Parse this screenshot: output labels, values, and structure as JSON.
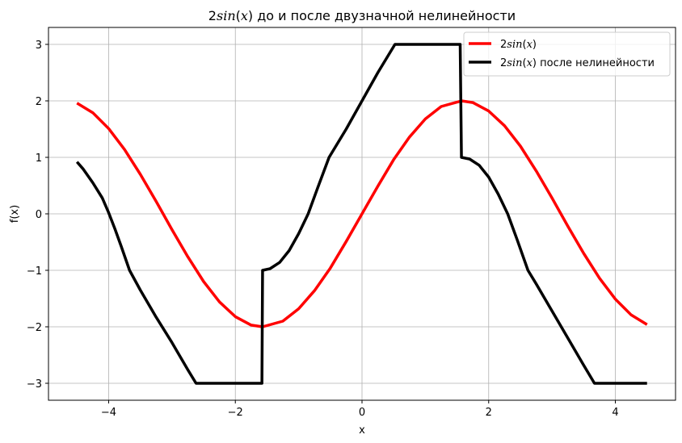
{
  "chart_data": {
    "type": "line",
    "title": {
      "prefix": "2",
      "func": "sin",
      "open": "(",
      "var": "x",
      "close": ")",
      "suffix": " до и после двузначной нелинейности"
    },
    "xlabel": "x",
    "ylabel": "f(x)",
    "xlim": [
      -4.95,
      4.95
    ],
    "ylim": [
      -3.3,
      3.3
    ],
    "xticks": [
      -4,
      -2,
      0,
      2,
      4
    ],
    "yticks": [
      -3,
      -2,
      -1,
      0,
      1,
      2,
      3
    ],
    "xtick_labels": [
      "−4",
      "−2",
      "0",
      "2",
      "4"
    ],
    "ytick_labels": [
      "−3",
      "−2",
      "−1",
      "0",
      "1",
      "2",
      "3"
    ],
    "grid": true,
    "legend_position": "top-right",
    "series": [
      {
        "name": {
          "prefix": "2",
          "func": "sin",
          "open": "(",
          "var": "x",
          "close": ")",
          "suffix": ""
        },
        "color": "#ff0000",
        "points": [
          [
            -4.5,
            1.96
          ],
          [
            -4.25,
            1.79
          ],
          [
            -4.0,
            1.51
          ],
          [
            -3.75,
            1.14
          ],
          [
            -3.5,
            0.7
          ],
          [
            -3.25,
            0.22
          ],
          [
            -3.0,
            -0.28
          ],
          [
            -2.75,
            -0.76
          ],
          [
            -2.5,
            -1.2
          ],
          [
            -2.25,
            -1.56
          ],
          [
            -2.0,
            -1.82
          ],
          [
            -1.75,
            -1.97
          ],
          [
            -1.5708,
            -2.0
          ],
          [
            -1.25,
            -1.9
          ],
          [
            -1.0,
            -1.68
          ],
          [
            -0.75,
            -1.36
          ],
          [
            -0.5,
            -0.96
          ],
          [
            -0.25,
            -0.49
          ],
          [
            0.0,
            0.0
          ],
          [
            0.25,
            0.49
          ],
          [
            0.5,
            0.96
          ],
          [
            0.75,
            1.36
          ],
          [
            1.0,
            1.68
          ],
          [
            1.25,
            1.9
          ],
          [
            1.5708,
            2.0
          ],
          [
            1.75,
            1.97
          ],
          [
            2.0,
            1.82
          ],
          [
            2.25,
            1.56
          ],
          [
            2.5,
            1.2
          ],
          [
            2.75,
            0.76
          ],
          [
            3.0,
            0.28
          ],
          [
            3.25,
            -0.22
          ],
          [
            3.5,
            -0.7
          ],
          [
            3.75,
            -1.14
          ],
          [
            4.0,
            -1.51
          ],
          [
            4.25,
            -1.79
          ],
          [
            4.5,
            -1.96
          ]
        ]
      },
      {
        "name": {
          "prefix": "2",
          "func": "sin",
          "open": "(",
          "var": "x",
          "close": ")",
          "suffix": " после нелинейности"
        },
        "color": "#000000",
        "points": [
          [
            -4.5,
            0.92
          ],
          [
            -4.4,
            0.79
          ],
          [
            -4.25,
            0.55
          ],
          [
            -4.1,
            0.28
          ],
          [
            -4.0,
            0.02
          ],
          [
            -3.9,
            -0.27
          ],
          [
            -3.8,
            -0.58
          ],
          [
            -3.67,
            -1.0
          ],
          [
            -3.5,
            -1.35
          ],
          [
            -3.25,
            -1.83
          ],
          [
            -3.0,
            -2.28
          ],
          [
            -2.75,
            -2.76
          ],
          [
            -2.62,
            -3.0
          ],
          [
            -1.58,
            -3.0
          ],
          [
            -1.57,
            -1.0
          ],
          [
            -1.45,
            -0.97
          ],
          [
            -1.3,
            -0.86
          ],
          [
            -1.15,
            -0.65
          ],
          [
            -1.0,
            -0.35
          ],
          [
            -0.85,
            0.0
          ],
          [
            -0.7,
            0.46
          ],
          [
            -0.52,
            1.0
          ],
          [
            -0.25,
            1.5
          ],
          [
            0.0,
            2.0
          ],
          [
            0.25,
            2.5
          ],
          [
            0.52,
            3.0
          ],
          [
            1.55,
            3.0
          ],
          [
            1.57,
            1.0
          ],
          [
            1.7,
            0.97
          ],
          [
            1.85,
            0.86
          ],
          [
            2.0,
            0.65
          ],
          [
            2.15,
            0.35
          ],
          [
            2.3,
            0.0
          ],
          [
            2.45,
            -0.46
          ],
          [
            2.62,
            -1.0
          ],
          [
            2.75,
            -1.24
          ],
          [
            3.0,
            -1.72
          ],
          [
            3.25,
            -2.2
          ],
          [
            3.5,
            -2.68
          ],
          [
            3.67,
            -3.0
          ],
          [
            4.5,
            -3.0
          ]
        ]
      }
    ]
  }
}
